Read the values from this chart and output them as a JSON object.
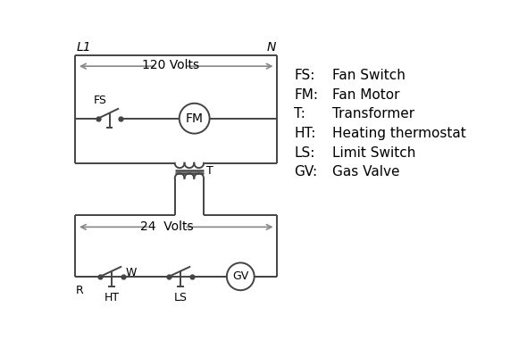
{
  "background_color": "#ffffff",
  "line_color": "#444444",
  "arrow_color": "#888888",
  "text_color": "#000000",
  "legend_items": [
    [
      "FS:",
      "Fan Switch"
    ],
    [
      "FM:",
      "Fan Motor"
    ],
    [
      "T:",
      "Transformer"
    ],
    [
      "HT:",
      "Heating thermostat"
    ],
    [
      "LS:",
      "Limit Switch"
    ],
    [
      "GV:",
      "Gas Valve"
    ]
  ],
  "L1_label": "L1",
  "N_label": "N",
  "volts120_label": "120 Volts",
  "volts24_label": "24  Volts",
  "T_label": "T",
  "R_label": "R",
  "W_label": "W",
  "HT_label": "HT",
  "LS_label": "LS",
  "FS_label": "FS",
  "FM_label": "FM",
  "GV_label": "GV"
}
